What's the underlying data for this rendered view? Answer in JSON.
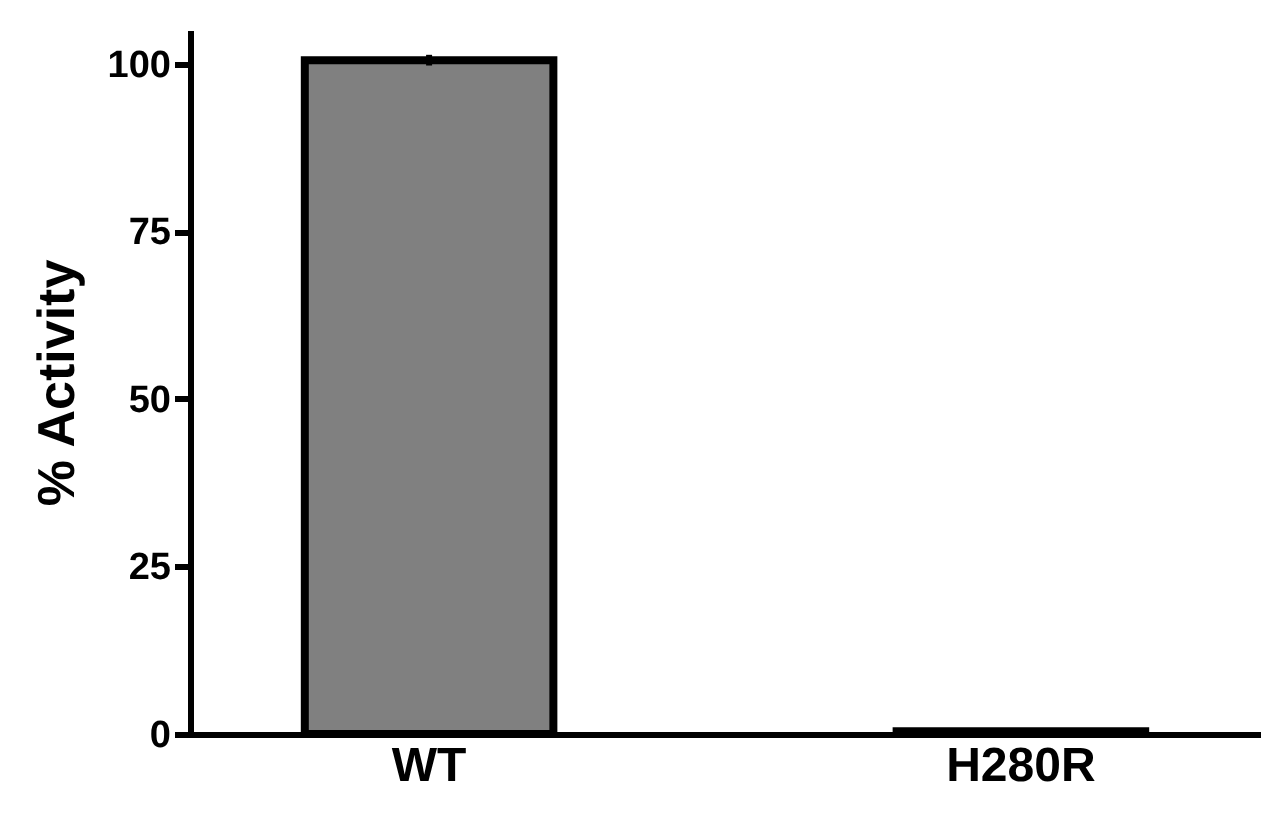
{
  "chart_data": {
    "type": "bar",
    "ylabel": "% Activity",
    "categories": [
      "WT",
      "H280R"
    ],
    "values": [
      100.5,
      0.4
    ],
    "errors": [
      0.8,
      null
    ],
    "color": "#808080",
    "ylim": [
      0,
      105
    ],
    "yticks": [
      0,
      25,
      50,
      75,
      100
    ],
    "grid": false
  }
}
